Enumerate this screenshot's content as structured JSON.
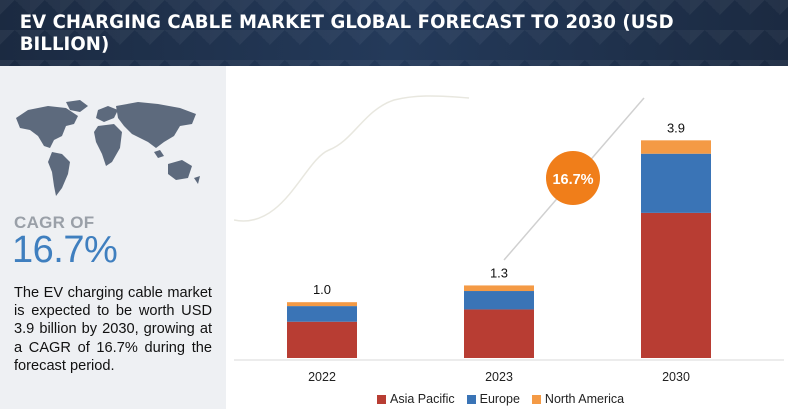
{
  "header": {
    "title": "EV CHARGING CABLE MARKET GLOBAL FORECAST TO 2030 (USD BILLION)"
  },
  "left_panel": {
    "cagr_label": "CAGR OF",
    "cagr_value": "16.7%",
    "description": "The EV charging cable market is expected to be worth USD 3.9 billion by 2030, growing at a CAGR of 16.7% during the forecast period."
  },
  "colors": {
    "asia_pacific": "#b83d33",
    "europe": "#3a74b6",
    "north_america": "#f49a45",
    "cagr_bubble": "#f07e1a",
    "header_bg": "#1e2f48"
  },
  "chart_data": {
    "type": "bar",
    "stacked": true,
    "title": "EV CHARGING CABLE MARKET GLOBAL FORECAST TO 2030 (USD BILLION)",
    "categories": [
      "2022",
      "2023",
      "2030"
    ],
    "totals": [
      1.0,
      1.3,
      3.9
    ],
    "total_labels": [
      "1.0",
      "1.3",
      "3.9"
    ],
    "series": [
      {
        "name": "Asia Pacific",
        "values": [
          0.65,
          0.87,
          2.6
        ]
      },
      {
        "name": "Europe",
        "values": [
          0.28,
          0.33,
          1.06
        ]
      },
      {
        "name": "North America",
        "values": [
          0.07,
          0.1,
          0.24
        ]
      }
    ],
    "ylim": [
      0,
      4.3
    ],
    "annotation": {
      "text": "16.7%",
      "meaning": "CAGR"
    },
    "legend_position": "bottom"
  }
}
